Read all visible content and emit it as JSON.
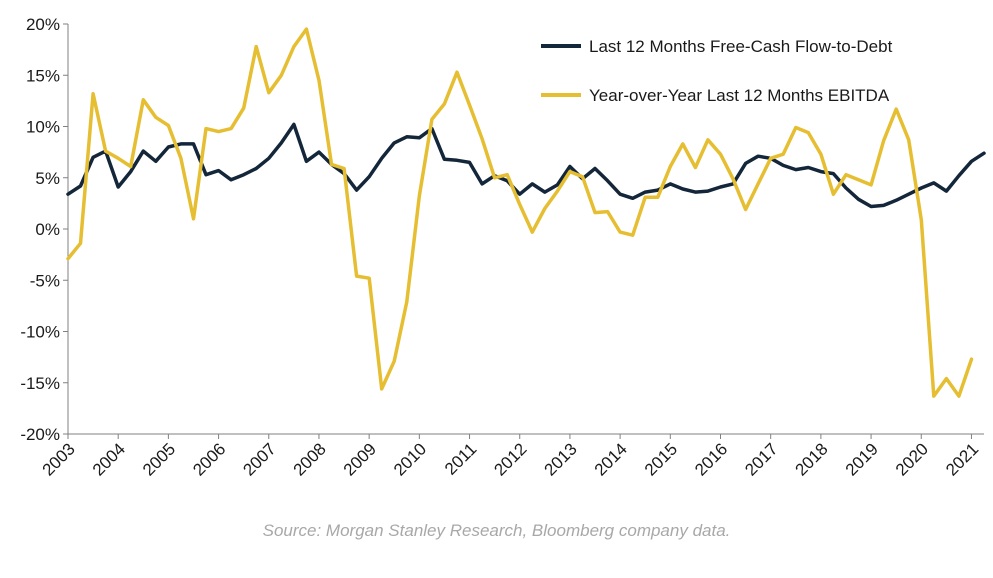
{
  "chart_data": {
    "type": "line",
    "x_start": 2003,
    "x_step": 0.25,
    "xlim": [
      2003,
      2021.25
    ],
    "ylim": [
      -20,
      20
    ],
    "y_ticks": [
      -20,
      -15,
      -10,
      -5,
      0,
      5,
      10,
      15,
      20
    ],
    "y_tick_labels": [
      "-20%",
      "-15%",
      "-10%",
      "-5%",
      "0%",
      "5%",
      "10%",
      "15%",
      "20%"
    ],
    "x_ticks": [
      2003,
      2004,
      2005,
      2006,
      2007,
      2008,
      2009,
      2010,
      2011,
      2012,
      2013,
      2014,
      2015,
      2016,
      2017,
      2018,
      2019,
      2020,
      2021
    ],
    "x_tick_labels": [
      "2003",
      "2004",
      "2005",
      "2006",
      "2007",
      "2008",
      "2009",
      "2010",
      "2011",
      "2012",
      "2013",
      "2014",
      "2015",
      "2016",
      "2017",
      "2018",
      "2019",
      "2020",
      "2021"
    ],
    "grid": false,
    "legend_position": "top-right",
    "series": [
      {
        "name": "Last 12 Months Free-Cash Flow-to-Debt",
        "color": "#13263a",
        "values": [
          3.4,
          4.2,
          7.0,
          7.6,
          4.1,
          5.6,
          7.6,
          6.6,
          8.0,
          8.3,
          8.3,
          5.3,
          5.7,
          4.8,
          5.3,
          5.9,
          6.9,
          8.4,
          10.2,
          6.6,
          7.5,
          6.3,
          5.4,
          3.8,
          5.1,
          6.9,
          8.4,
          9.0,
          8.9,
          9.8,
          6.8,
          6.7,
          6.5,
          4.4,
          5.2,
          4.7,
          3.4,
          4.4,
          3.6,
          4.3,
          6.1,
          4.9,
          5.9,
          4.7,
          3.4,
          3.0,
          3.6,
          3.8,
          4.4,
          3.9,
          3.6,
          3.7,
          4.1,
          4.4,
          6.4,
          7.1,
          6.9,
          6.2,
          5.8,
          6.0,
          5.6,
          5.4,
          4.0,
          2.9,
          2.2,
          2.3,
          2.8,
          3.4,
          4.0,
          4.5,
          3.7,
          5.2,
          6.6,
          7.4
        ]
      },
      {
        "name": "Year-over-Year Last 12 Months EBITDA",
        "color": "#e6be32",
        "values": [
          -2.9,
          -1.4,
          13.2,
          7.6,
          6.9,
          6.1,
          12.6,
          10.9,
          10.1,
          6.9,
          1.0,
          9.8,
          9.5,
          9.8,
          11.8,
          17.8,
          13.3,
          15.0,
          17.8,
          19.5,
          14.5,
          6.3,
          5.9,
          -4.6,
          -4.8,
          -15.6,
          -12.9,
          -7.1,
          3.2,
          10.7,
          12.2,
          15.3,
          12.1,
          8.8,
          5.0,
          5.3,
          2.4,
          -0.3,
          2.0,
          3.7,
          5.6,
          5.1,
          1.6,
          1.7,
          -0.3,
          -0.6,
          3.1,
          3.1,
          6.1,
          8.3,
          6.0,
          8.7,
          7.3,
          4.9,
          1.9,
          4.4,
          6.9,
          7.3,
          9.9,
          9.4,
          7.3,
          3.4,
          5.3,
          4.8,
          4.3,
          8.6,
          11.7,
          8.7,
          0.9,
          -16.3,
          -14.6,
          -16.3,
          -12.7
        ]
      }
    ]
  },
  "source_text": "Source: Morgan Stanley Research, Bloomberg company data."
}
